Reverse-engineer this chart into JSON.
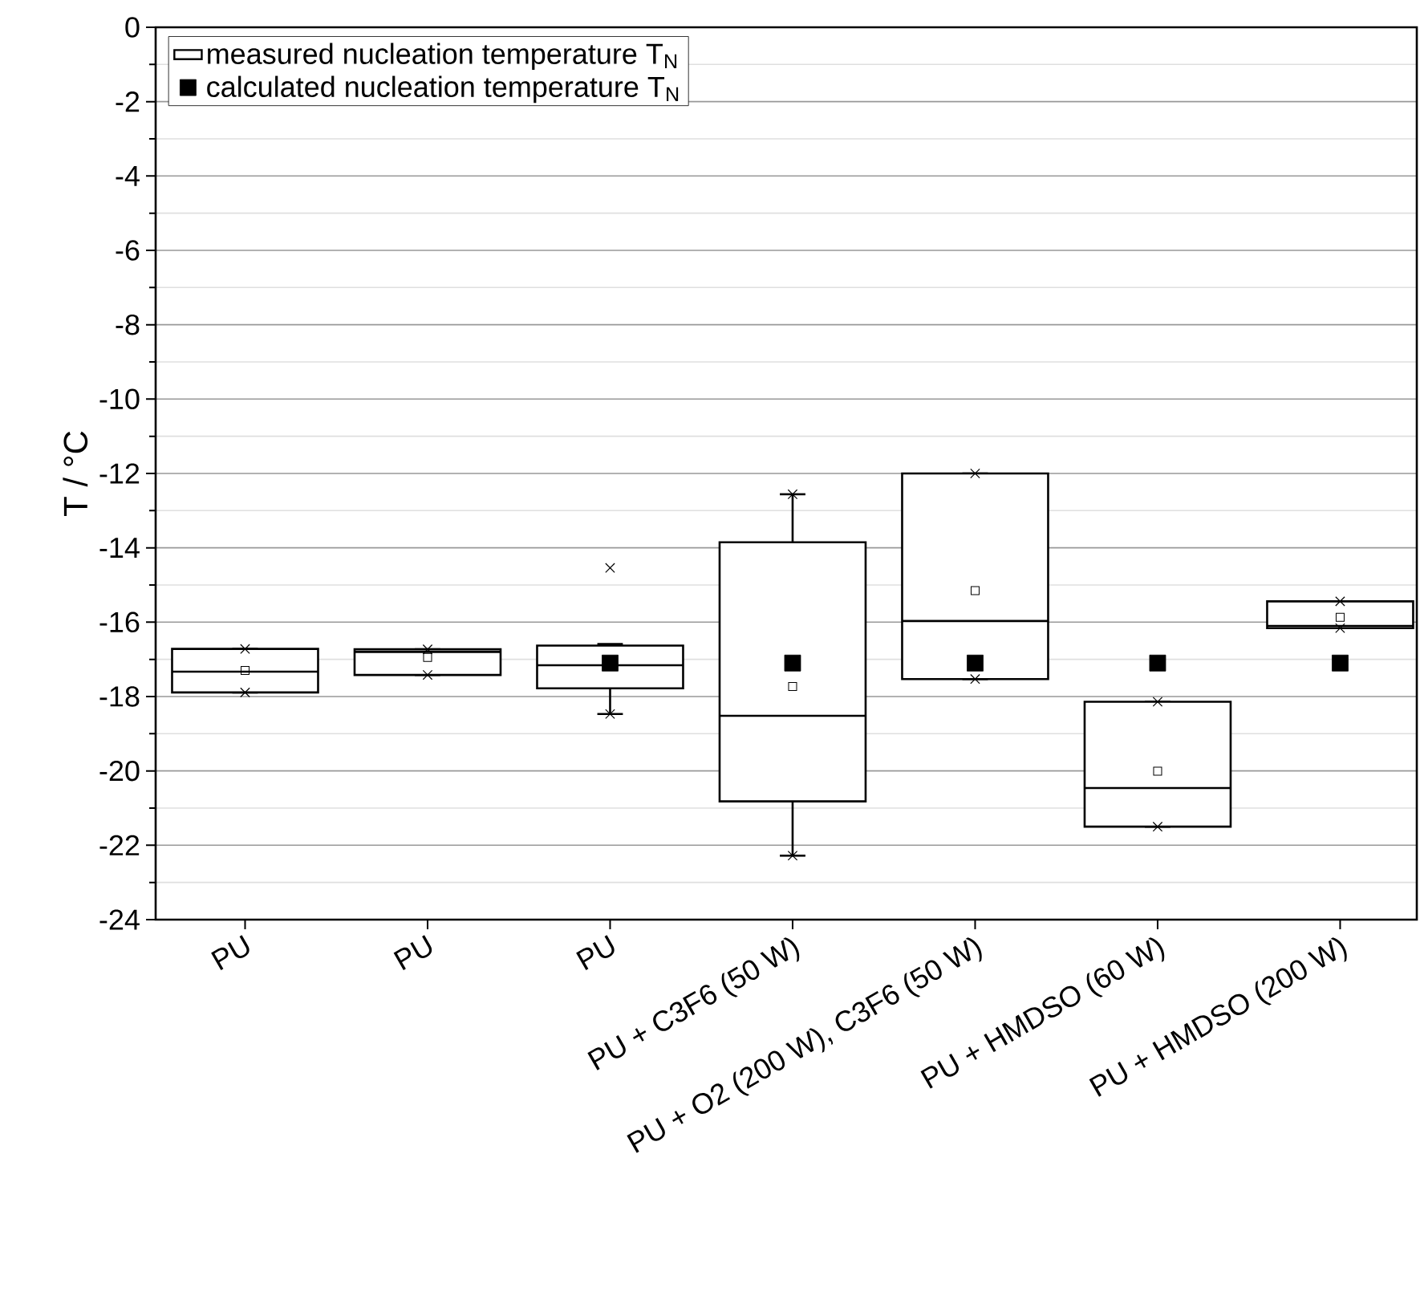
{
  "chart_data": {
    "type": "box",
    "ylabel": "T / °C",
    "categories": [
      "PU",
      "PU",
      "PU",
      "PU + C3F6 (50 W)",
      "PU + O2 (200 W), C3F6 (50 W)",
      "PU + HMDSO (60 W)",
      "PU + HMDSO (200 W)"
    ],
    "series": [
      {
        "name": "measured nucleation temperature T$_{N}$",
        "type": "box",
        "color": "#000000",
        "boxes": [
          {
            "low": -17.89,
            "q1": -17.89,
            "median": -17.33,
            "q3": -16.72,
            "high": -16.72,
            "mean": -17.3,
            "outliers": [
              -17.89,
              -16.72
            ]
          },
          {
            "low": -17.42,
            "q1": -17.42,
            "median": -16.8,
            "q3": -16.73,
            "high": -16.73,
            "mean": -16.95,
            "outliers": [
              -17.42,
              -16.73
            ]
          },
          {
            "low": -18.47,
            "q1": -17.78,
            "median": -17.16,
            "q3": -16.63,
            "high": -16.59,
            "outliers": [
              -18.47,
              -14.54
            ]
          },
          {
            "low": -22.28,
            "q1": -20.82,
            "median": -18.52,
            "q3": -13.85,
            "high": -12.56,
            "mean": -17.73,
            "outliers": [
              -22.28,
              -12.56
            ]
          },
          {
            "low": -17.53,
            "q1": -17.53,
            "median": -15.97,
            "q3": -12.0,
            "high": -12.0,
            "mean": -15.15,
            "outliers": [
              -17.53,
              -12.0
            ]
          },
          {
            "low": -21.5,
            "q1": -21.5,
            "median": -20.46,
            "q3": -18.14,
            "high": -18.14,
            "mean": -20.01,
            "outliers": [
              -21.5,
              -18.14
            ]
          },
          {
            "low": -16.16,
            "q1": -16.16,
            "median": -16.1,
            "q3": -15.44,
            "high": -15.44,
            "mean": -15.87,
            "outliers": [
              -16.16,
              -15.44
            ]
          }
        ]
      },
      {
        "name": "calculated nucleation temperature T$_{N}$",
        "type": "scatter",
        "color": "#000000",
        "marker": "square",
        "values": [
          null,
          null,
          -17.1,
          -17.1,
          -17.1,
          -17.1,
          -17.1
        ]
      }
    ],
    "ylim": [
      -24,
      0
    ],
    "yticks": [
      -24,
      -22,
      -20,
      -18,
      -16,
      -14,
      -12,
      -10,
      -8,
      -6,
      -4,
      -2,
      0
    ],
    "grid": "y",
    "legend": "top left"
  }
}
